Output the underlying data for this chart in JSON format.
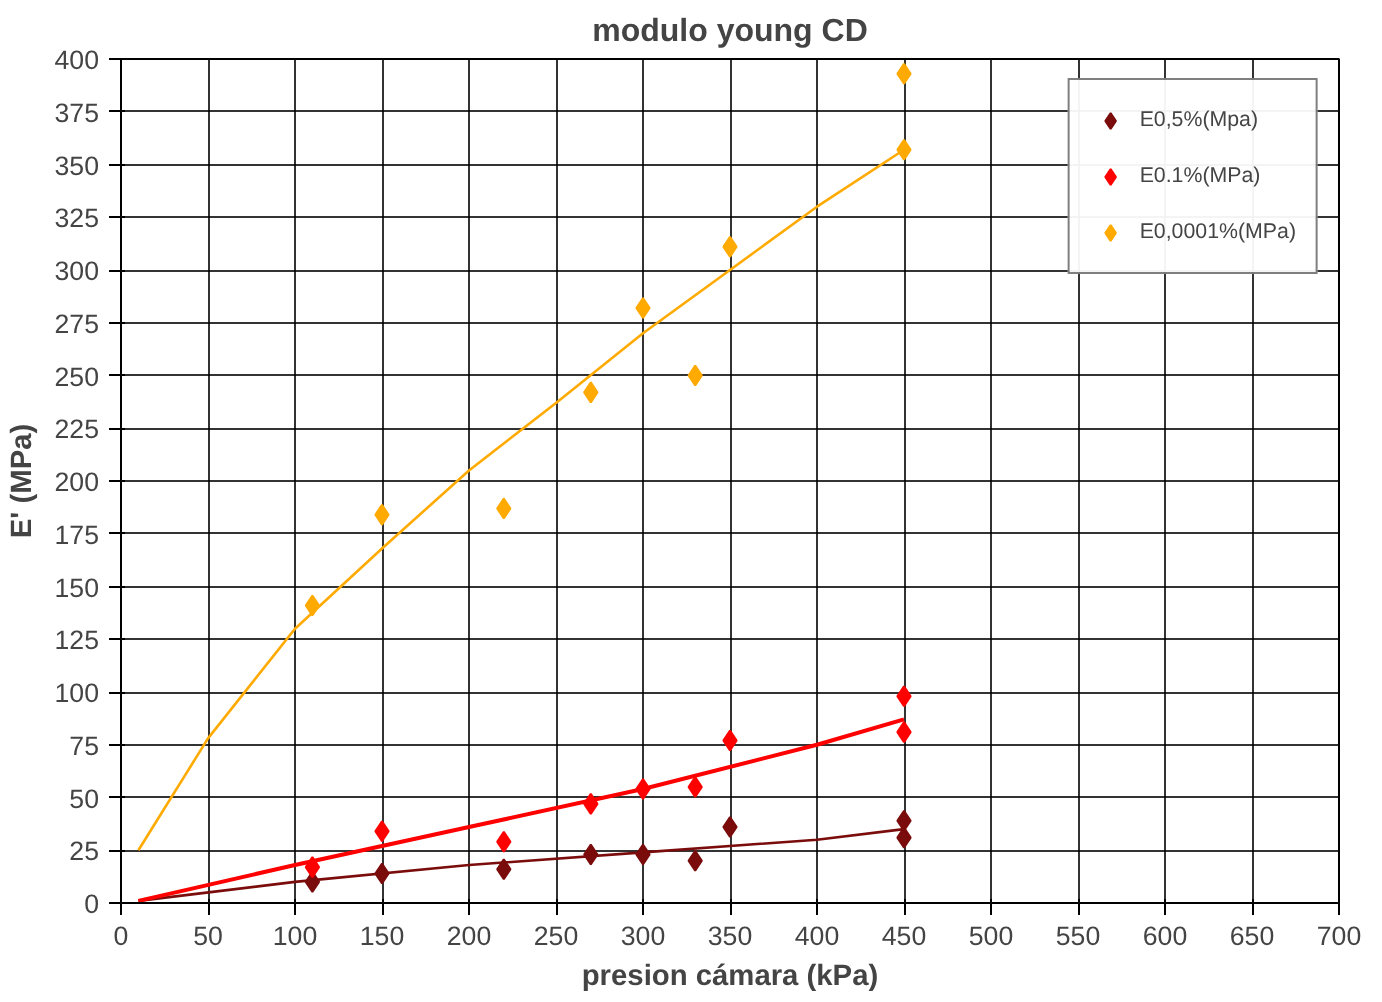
{
  "chart_data": {
    "type": "scatter",
    "title": "modulo young CD",
    "xlabel": "presion cámara (kPa)",
    "ylabel": "E' (MPa)",
    "x": [
      110,
      150,
      220,
      270,
      300,
      330,
      350,
      450,
      450
    ],
    "series": [
      {
        "name": "E0,5%(Mpa)",
        "color": "#7b0c0c",
        "marker": "diamond",
        "values": [
          10,
          14,
          16,
          23,
          23,
          20,
          36,
          39,
          31
        ]
      },
      {
        "name": "E0.1%(MPa)",
        "color": "#ff0000",
        "marker": "diamond",
        "values": [
          17,
          34,
          29,
          47,
          54,
          55,
          77,
          98,
          81
        ]
      },
      {
        "name": "E0,0001%(MPa)",
        "color": "#ffaa00",
        "marker": "diamond",
        "values": [
          141,
          184,
          187,
          242,
          282,
          250,
          311,
          393,
          357
        ]
      },
      {
        "type": "line",
        "color": "#7b0c0c",
        "marker": "none",
        "x": [
          10,
          100,
          200,
          300,
          400,
          450
        ],
        "values": [
          1,
          10,
          18,
          24,
          30,
          35
        ]
      },
      {
        "type": "line",
        "color": "#ff0000",
        "marker": "none",
        "x": [
          10,
          100,
          200,
          300,
          400,
          450
        ],
        "values": [
          1,
          18,
          36,
          54,
          75,
          87
        ]
      },
      {
        "type": "line",
        "color": "#ffaa00",
        "marker": "none",
        "x": [
          10,
          50,
          100,
          150,
          200,
          250,
          300,
          350,
          400,
          450
        ],
        "values": [
          25,
          78,
          130,
          168,
          205,
          237,
          270,
          300,
          330,
          357
        ]
      }
    ],
    "xlim": [
      0,
      700
    ],
    "ylim": [
      0,
      400
    ],
    "xticks": [
      0,
      50,
      100,
      150,
      200,
      250,
      300,
      350,
      400,
      450,
      500,
      550,
      600,
      650,
      700
    ],
    "yticks": [
      0,
      25,
      50,
      75,
      100,
      125,
      150,
      175,
      200,
      225,
      250,
      275,
      300,
      325,
      350,
      375,
      400
    ],
    "grid": true,
    "legend": "top right"
  }
}
